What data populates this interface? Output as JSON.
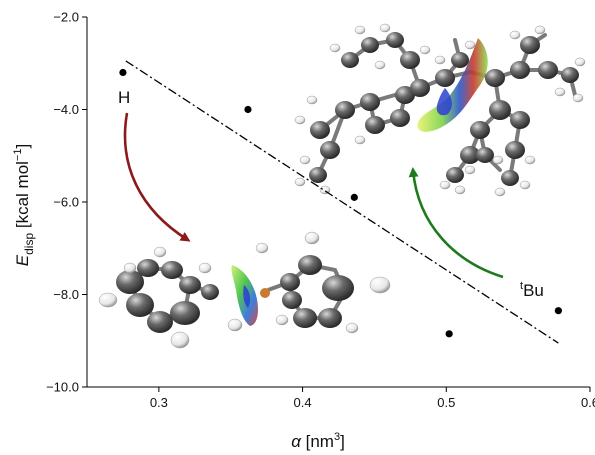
{
  "chart_data": {
    "type": "scatter",
    "xlabel_symbol": "α",
    "xlabel_unit": " [nm",
    "xlabel_sup": "3",
    "xlabel_close": "]",
    "ylabel_symbol": "E",
    "ylabel_sub": "disp",
    "ylabel_unit": " [kcal mol",
    "ylabel_sup": "−1",
    "ylabel_close": "]",
    "xlim": [
      0.25,
      0.6
    ],
    "ylim": [
      -10.0,
      -2.0
    ],
    "xticks": [
      0.3,
      0.4,
      0.5,
      0.6
    ],
    "xtick_labels": [
      "0.3",
      "0.4",
      "0.5",
      "0.6"
    ],
    "yticks": [
      -10.0,
      -8.0,
      -6.0,
      -4.0,
      -2.0
    ],
    "ytick_labels": [
      "−10.0",
      "−8.0",
      "−6.0",
      "−4.0",
      "−2.0"
    ],
    "points": [
      {
        "x": 0.275,
        "y": -3.2
      },
      {
        "x": 0.362,
        "y": -4.0
      },
      {
        "x": 0.436,
        "y": -5.9
      },
      {
        "x": 0.502,
        "y": -8.85
      },
      {
        "x": 0.578,
        "y": -8.35
      }
    ],
    "fit_line": {
      "x": [
        0.277,
        0.578
      ],
      "y": [
        -2.95,
        -9.05
      ],
      "style": "dash-dot"
    },
    "annotations": {
      "h_label": "H",
      "tbu_sup": "t",
      "tbu_main": "Bu"
    },
    "colors": {
      "points": "#000000",
      "fit_line": "#000000",
      "h_arrow": "#8b1a1a",
      "tbu_arrow": "#1f7a1f",
      "atom_carbon": "#555555",
      "atom_hydrogen": "#f2f2f2"
    },
    "molecules": [
      "biphenyl-molecule",
      "tert-butyl-substituted-molecule"
    ]
  }
}
